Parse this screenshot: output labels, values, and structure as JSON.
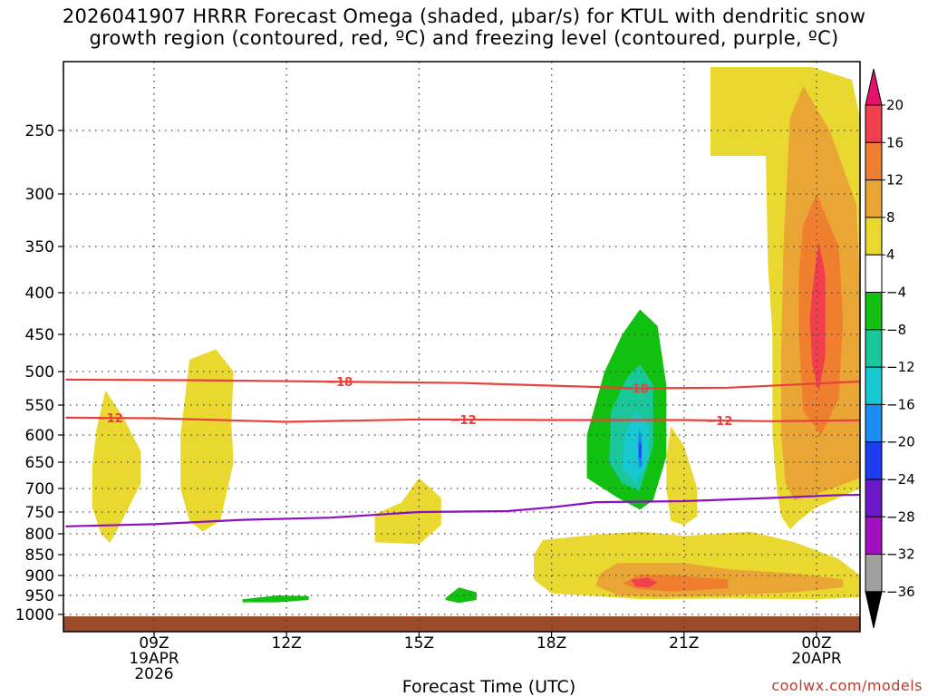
{
  "title_line1": "2026041907 HRRR Forecast Omega (shaded, μbar/s) for KTUL with dendritic snow",
  "title_line2": "growth region (contoured, red, ºC) and freezing level (contoured, purple, ºC)",
  "credit": "coolwx.com/models",
  "chart_data": {
    "type": "time-height contour",
    "title": "2026041907 HRRR Forecast Omega (shaded, μbar/s) for KTUL with dendritic snow growth region (contoured, red, ºC) and freezing level (contoured, purple, ºC)",
    "xlabel": "Forecast Time (UTC)",
    "ylabel": "",
    "xlim": [
      7,
      25.5
    ],
    "ylim": [
      1025,
      200
    ],
    "x_ticks": [
      {
        "x": 9,
        "lines": [
          "09Z",
          "19APR",
          "2026"
        ]
      },
      {
        "x": 12,
        "lines": [
          "12Z"
        ]
      },
      {
        "x": 15,
        "lines": [
          "15Z"
        ]
      },
      {
        "x": 18,
        "lines": [
          "18Z"
        ]
      },
      {
        "x": 21,
        "lines": [
          "21Z"
        ]
      },
      {
        "x": 24,
        "lines": [
          "00Z",
          "20APR"
        ]
      }
    ],
    "y_ticks": [
      250,
      300,
      350,
      400,
      450,
      500,
      550,
      600,
      650,
      700,
      750,
      800,
      850,
      900,
      950,
      1000
    ],
    "grid": true,
    "colorbar": {
      "levels": [
        -36,
        -32,
        -28,
        -24,
        -20,
        -16,
        -12,
        -8,
        -4,
        4,
        8,
        12,
        16,
        20
      ],
      "labels": [
        "20",
        "16",
        "12",
        "8",
        "4",
        "-4",
        "-8",
        "-12",
        "-16",
        "-20",
        "-24",
        "-28",
        "-32",
        "-36"
      ],
      "colors": {
        "above_20": "#e8106e",
        "16_20": "#f0404e",
        "12_16": "#ef7e2f",
        "8_12": "#e9a634",
        "4_8": "#e9d830",
        "-4_4": "#ffffff",
        "-8_-4": "#12c012",
        "-12_-8": "#1ac79a",
        "-16_-12": "#18c8d0",
        "-20_-16": "#1c8cf0",
        "-24_-20": "#1c3cee",
        "-28_-24": "#6a18c8",
        "-32_-28": "#a010c0",
        "-36_-32": "#a0a0a0",
        "below_-36": "#000000"
      }
    },
    "contours": [
      {
        "name": "-18",
        "color": "#e8403a",
        "points": [
          [
            7,
            512
          ],
          [
            10,
            513
          ],
          [
            13,
            515
          ],
          [
            16,
            517
          ],
          [
            19,
            523
          ],
          [
            20,
            525
          ],
          [
            22,
            524
          ],
          [
            24,
            518
          ],
          [
            25.5,
            513
          ]
        ],
        "label_positions": [
          13.2,
          19.9
        ]
      },
      {
        "name": "-12",
        "color": "#e8403a",
        "points": [
          [
            7,
            571
          ],
          [
            9,
            572
          ],
          [
            12,
            578
          ],
          [
            15,
            574
          ],
          [
            18,
            575
          ],
          [
            21,
            575
          ],
          [
            23,
            577
          ],
          [
            25.5,
            575
          ]
        ],
        "label_positions": [
          8.0,
          16.0,
          21.8
        ]
      },
      {
        "name": "0",
        "color": "#8a10c0",
        "points": [
          [
            7,
            783
          ],
          [
            9,
            778
          ],
          [
            11,
            768
          ],
          [
            13,
            763
          ],
          [
            15,
            750
          ],
          [
            17,
            748
          ],
          [
            18,
            740
          ],
          [
            19,
            729
          ],
          [
            21,
            727
          ],
          [
            23,
            720
          ],
          [
            24.5,
            714
          ],
          [
            25.5,
            713
          ]
        ],
        "label_positions": []
      }
    ],
    "shaded_regions": [
      {
        "range": "4_8",
        "points": [
          [
            7.9,
            528
          ],
          [
            8.3,
            570
          ],
          [
            8.7,
            630
          ],
          [
            8.7,
            690
          ],
          [
            8.3,
            765
          ],
          [
            8.0,
            822
          ],
          [
            7.8,
            800
          ],
          [
            7.6,
            740
          ],
          [
            7.6,
            660
          ],
          [
            7.7,
            590
          ]
        ]
      },
      {
        "range": "4_8",
        "points": [
          [
            9.8,
            484
          ],
          [
            10.4,
            470
          ],
          [
            10.8,
            500
          ],
          [
            10.75,
            580
          ],
          [
            10.8,
            650
          ],
          [
            10.5,
            770
          ],
          [
            10.1,
            795
          ],
          [
            9.8,
            770
          ],
          [
            9.6,
            700
          ],
          [
            9.6,
            600
          ],
          [
            9.7,
            540
          ]
        ]
      },
      {
        "range": "4_8",
        "points": [
          [
            14.0,
            755
          ],
          [
            14.6,
            730
          ],
          [
            15.0,
            680
          ],
          [
            15.5,
            720
          ],
          [
            15.5,
            780
          ],
          [
            15.0,
            825
          ],
          [
            14.0,
            820
          ]
        ]
      },
      {
        "range": "4_8",
        "points": [
          [
            20.7,
            585
          ],
          [
            21.0,
            620
          ],
          [
            21.3,
            700
          ],
          [
            21.3,
            760
          ],
          [
            21.0,
            780
          ],
          [
            20.7,
            770
          ],
          [
            20.6,
            700
          ],
          [
            20.6,
            640
          ]
        ]
      },
      {
        "range": "4_8",
        "points": [
          [
            19,
            802
          ],
          [
            20,
            795
          ],
          [
            21,
            805
          ],
          [
            22.5,
            795
          ],
          [
            23.5,
            820
          ],
          [
            24.5,
            860
          ],
          [
            25.5,
            900
          ],
          [
            25.5,
            955
          ],
          [
            24,
            960
          ],
          [
            22,
            958
          ],
          [
            20,
            960
          ],
          [
            19,
            952
          ],
          [
            18.0,
            945
          ],
          [
            17.6,
            910
          ],
          [
            17.6,
            850
          ],
          [
            17.8,
            815
          ]
        ]
      },
      {
        "range": "8_12",
        "points": [
          [
            19.5,
            870
          ],
          [
            21,
            870
          ],
          [
            22,
            885
          ],
          [
            23.5,
            895
          ],
          [
            24.6,
            910
          ],
          [
            24.6,
            930
          ],
          [
            23.5,
            942
          ],
          [
            22,
            950
          ],
          [
            20.5,
            955
          ],
          [
            19.5,
            950
          ],
          [
            19.0,
            925
          ],
          [
            19.1,
            895
          ]
        ]
      },
      {
        "range": "12_16",
        "points": [
          [
            20.0,
            898
          ],
          [
            20.8,
            900
          ],
          [
            22,
            910
          ],
          [
            22.0,
            932
          ],
          [
            20.8,
            940
          ],
          [
            20.0,
            935
          ],
          [
            19.6,
            920
          ]
        ]
      },
      {
        "range": "16_20",
        "points": [
          [
            19.8,
            910
          ],
          [
            20.2,
            906
          ],
          [
            20.4,
            918
          ],
          [
            20.2,
            930
          ],
          [
            19.9,
            928
          ]
        ]
      },
      {
        "range": "4_8",
        "points": [
          [
            22.85,
            200
          ],
          [
            23.9,
            200
          ],
          [
            24.8,
            210
          ],
          [
            25.3,
            240
          ],
          [
            25.5,
            290
          ],
          [
            25.5,
            700
          ],
          [
            24.5,
            720
          ],
          [
            24,
            740
          ],
          [
            23.6,
            770
          ],
          [
            23.4,
            790
          ],
          [
            23.2,
            760
          ],
          [
            23.1,
            700
          ],
          [
            23.0,
            600
          ],
          [
            23.0,
            450
          ],
          [
            22.9,
            370
          ],
          [
            22.85,
            270
          ],
          [
            21.6,
            270
          ],
          [
            21.6,
            200
          ]
        ]
      },
      {
        "range": "8_12",
        "points": [
          [
            23.4,
            240
          ],
          [
            23.7,
            215
          ],
          [
            24.3,
            250
          ],
          [
            24.9,
            310
          ],
          [
            25.1,
            400
          ],
          [
            25.1,
            520
          ],
          [
            25.0,
            680
          ],
          [
            24.2,
            705
          ],
          [
            23.5,
            725
          ],
          [
            23.3,
            690
          ],
          [
            23.2,
            600
          ],
          [
            23.2,
            480
          ],
          [
            23.25,
            350
          ]
        ]
      },
      {
        "range": "12_16",
        "points": [
          [
            23.7,
            330
          ],
          [
            24.0,
            300
          ],
          [
            24.5,
            350
          ],
          [
            24.6,
            430
          ],
          [
            24.5,
            540
          ],
          [
            24.1,
            600
          ],
          [
            23.7,
            560
          ],
          [
            23.6,
            450
          ],
          [
            23.6,
            380
          ]
        ]
      },
      {
        "range": "16_20",
        "points": [
          [
            23.9,
            400
          ],
          [
            24.05,
            345
          ],
          [
            24.2,
            380
          ],
          [
            24.2,
            480
          ],
          [
            24.05,
            530
          ],
          [
            23.9,
            490
          ],
          [
            23.85,
            430
          ]
        ]
      },
      {
        "range": "-8_-4",
        "points": [
          [
            20.0,
            420
          ],
          [
            20.4,
            440
          ],
          [
            20.6,
            520
          ],
          [
            20.6,
            640
          ],
          [
            20.3,
            725
          ],
          [
            20.0,
            745
          ],
          [
            19.5,
            720
          ],
          [
            18.8,
            680
          ],
          [
            18.8,
            600
          ],
          [
            19.2,
            500
          ],
          [
            19.6,
            450
          ]
        ]
      },
      {
        "range": "-12_-8",
        "points": [
          [
            20.0,
            490
          ],
          [
            20.3,
            520
          ],
          [
            20.3,
            620
          ],
          [
            20.0,
            705
          ],
          [
            19.6,
            690
          ],
          [
            19.3,
            650
          ],
          [
            19.35,
            560
          ],
          [
            19.7,
            510
          ]
        ]
      },
      {
        "range": "-16_-12",
        "points": [
          [
            19.9,
            560
          ],
          [
            20.2,
            585
          ],
          [
            20.2,
            650
          ],
          [
            19.9,
            690
          ],
          [
            19.6,
            660
          ],
          [
            19.65,
            600
          ]
        ]
      },
      {
        "range": "-20_-16",
        "points": [
          [
            19.98,
            590
          ],
          [
            20.05,
            610
          ],
          [
            20.05,
            660
          ],
          [
            19.97,
            660
          ],
          [
            19.95,
            620
          ]
        ]
      },
      {
        "range": "-24_-20",
        "points": [
          [
            19.99,
            610
          ],
          [
            20.03,
            620
          ],
          [
            20.02,
            645
          ],
          [
            19.98,
            640
          ]
        ]
      },
      {
        "range": "-8_-4",
        "points": [
          [
            11.0,
            960
          ],
          [
            11.8,
            950
          ],
          [
            12.5,
            952
          ],
          [
            12.5,
            962
          ],
          [
            11.8,
            968
          ],
          [
            11.0,
            968
          ]
        ]
      },
      {
        "range": "-8_-4",
        "points": [
          [
            15.6,
            957
          ],
          [
            15.9,
            930
          ],
          [
            16.3,
            942
          ],
          [
            16.3,
            962
          ],
          [
            15.9,
            970
          ],
          [
            15.6,
            962
          ]
        ]
      }
    ],
    "terrain": {
      "pressure_top": 1005,
      "color": "#9c4a28"
    }
  }
}
